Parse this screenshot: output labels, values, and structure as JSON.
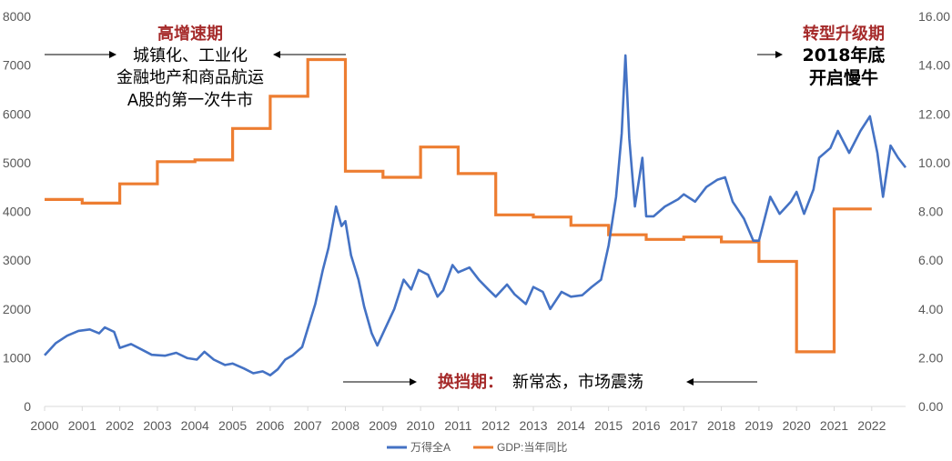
{
  "colors": {
    "index_line": "#4472C4",
    "gdp_line": "#ED7D31",
    "highlight_text": "#A52A2A",
    "axis_text": "#595959"
  },
  "chart_data": {
    "type": "line",
    "title": "",
    "x_range": [
      2000,
      2022.9
    ],
    "x_ticks": [
      "2000",
      "2001",
      "2002",
      "2003",
      "2004",
      "2005",
      "2006",
      "2007",
      "2008",
      "2009",
      "2010",
      "2011",
      "2012",
      "2013",
      "2014",
      "2015",
      "2016",
      "2017",
      "2018",
      "2019",
      "2020",
      "2021",
      "2022"
    ],
    "y_left": {
      "range": [
        0,
        8000
      ],
      "ticks": [
        "0",
        "1000",
        "2000",
        "3000",
        "4000",
        "5000",
        "6000",
        "7000",
        "8000"
      ]
    },
    "y_right": {
      "range": [
        0,
        16
      ],
      "ticks": [
        "0.00",
        "2.00",
        "4.00",
        "6.00",
        "8.00",
        "10.00",
        "12.00",
        "14.00",
        "16.00"
      ]
    },
    "grid": false,
    "legend_position": "bottom",
    "series": [
      {
        "name": "万得全A",
        "axis": "left",
        "style": "line",
        "points": [
          [
            2000.0,
            1050
          ],
          [
            2000.3,
            1300
          ],
          [
            2000.6,
            1450
          ],
          [
            2000.9,
            1550
          ],
          [
            2001.2,
            1580
          ],
          [
            2001.45,
            1500
          ],
          [
            2001.6,
            1620
          ],
          [
            2001.85,
            1530
          ],
          [
            2002.0,
            1200
          ],
          [
            2002.3,
            1280
          ],
          [
            2002.6,
            1160
          ],
          [
            2002.85,
            1060
          ],
          [
            2003.2,
            1040
          ],
          [
            2003.5,
            1100
          ],
          [
            2003.8,
            990
          ],
          [
            2004.05,
            960
          ],
          [
            2004.25,
            1120
          ],
          [
            2004.5,
            960
          ],
          [
            2004.8,
            850
          ],
          [
            2005.0,
            880
          ],
          [
            2005.3,
            780
          ],
          [
            2005.55,
            680
          ],
          [
            2005.8,
            720
          ],
          [
            2006.0,
            640
          ],
          [
            2006.2,
            760
          ],
          [
            2006.4,
            960
          ],
          [
            2006.6,
            1050
          ],
          [
            2006.85,
            1220
          ],
          [
            2007.0,
            1600
          ],
          [
            2007.2,
            2100
          ],
          [
            2007.4,
            2800
          ],
          [
            2007.55,
            3250
          ],
          [
            2007.75,
            4100
          ],
          [
            2007.9,
            3700
          ],
          [
            2008.0,
            3800
          ],
          [
            2008.15,
            3100
          ],
          [
            2008.35,
            2600
          ],
          [
            2008.5,
            2050
          ],
          [
            2008.7,
            1500
          ],
          [
            2008.85,
            1250
          ],
          [
            2009.0,
            1500
          ],
          [
            2009.3,
            2000
          ],
          [
            2009.55,
            2600
          ],
          [
            2009.75,
            2400
          ],
          [
            2009.95,
            2800
          ],
          [
            2010.2,
            2700
          ],
          [
            2010.45,
            2250
          ],
          [
            2010.6,
            2380
          ],
          [
            2010.85,
            2900
          ],
          [
            2011.0,
            2750
          ],
          [
            2011.3,
            2850
          ],
          [
            2011.55,
            2600
          ],
          [
            2011.8,
            2400
          ],
          [
            2012.0,
            2250
          ],
          [
            2012.3,
            2500
          ],
          [
            2012.5,
            2300
          ],
          [
            2012.8,
            2100
          ],
          [
            2013.0,
            2450
          ],
          [
            2013.25,
            2350
          ],
          [
            2013.45,
            2000
          ],
          [
            2013.75,
            2350
          ],
          [
            2014.0,
            2250
          ],
          [
            2014.3,
            2280
          ],
          [
            2014.55,
            2450
          ],
          [
            2014.8,
            2600
          ],
          [
            2015.0,
            3300
          ],
          [
            2015.2,
            4300
          ],
          [
            2015.35,
            5600
          ],
          [
            2015.45,
            7200
          ],
          [
            2015.55,
            5500
          ],
          [
            2015.7,
            4100
          ],
          [
            2015.9,
            5100
          ],
          [
            2016.0,
            3900
          ],
          [
            2016.2,
            3900
          ],
          [
            2016.5,
            4100
          ],
          [
            2016.85,
            4250
          ],
          [
            2017.0,
            4350
          ],
          [
            2017.3,
            4200
          ],
          [
            2017.6,
            4500
          ],
          [
            2017.9,
            4650
          ],
          [
            2018.1,
            4700
          ],
          [
            2018.3,
            4200
          ],
          [
            2018.6,
            3850
          ],
          [
            2018.85,
            3400
          ],
          [
            2019.0,
            3400
          ],
          [
            2019.3,
            4300
          ],
          [
            2019.55,
            3950
          ],
          [
            2019.85,
            4200
          ],
          [
            2020.0,
            4400
          ],
          [
            2020.2,
            3950
          ],
          [
            2020.45,
            4450
          ],
          [
            2020.6,
            5100
          ],
          [
            2020.9,
            5300
          ],
          [
            2021.1,
            5650
          ],
          [
            2021.4,
            5200
          ],
          [
            2021.7,
            5650
          ],
          [
            2021.95,
            5950
          ],
          [
            2022.15,
            5200
          ],
          [
            2022.3,
            4300
          ],
          [
            2022.5,
            5350
          ],
          [
            2022.7,
            5100
          ],
          [
            2022.9,
            4900
          ]
        ]
      },
      {
        "name": "GDP:当年同比",
        "axis": "right",
        "style": "step",
        "x_start": 2000.0,
        "x_end": 2022.95,
        "years": [
          2000,
          2001,
          2002,
          2003,
          2004,
          2005,
          2006,
          2007,
          2008,
          2009,
          2010,
          2011,
          2012,
          2013,
          2014,
          2015,
          2016,
          2017,
          2018,
          2019,
          2020,
          2021,
          2022
        ],
        "values": [
          8.49,
          8.34,
          9.13,
          10.04,
          10.11,
          11.4,
          12.72,
          14.23,
          9.65,
          9.4,
          10.64,
          9.55,
          7.86,
          7.77,
          7.43,
          7.04,
          6.85,
          6.95,
          6.75,
          5.95,
          2.24,
          8.1,
          null
        ]
      }
    ]
  },
  "annotations": {
    "top_left_title": "高增速期",
    "top_left_lines": [
      "城镇化、工业化",
      "金融地产和商品航运",
      "A股的第一次牛市"
    ],
    "top_right_title": "转型升级期",
    "top_right_lines": [
      "2018年底",
      "开启慢牛"
    ],
    "bottom_title": "换挡期：",
    "bottom_text": "新常态，市场震荡",
    "arrow_right": "→",
    "arrow_left": "←"
  },
  "legend": {
    "series_1": "万得全A",
    "series_2": "GDP:当年同比"
  }
}
